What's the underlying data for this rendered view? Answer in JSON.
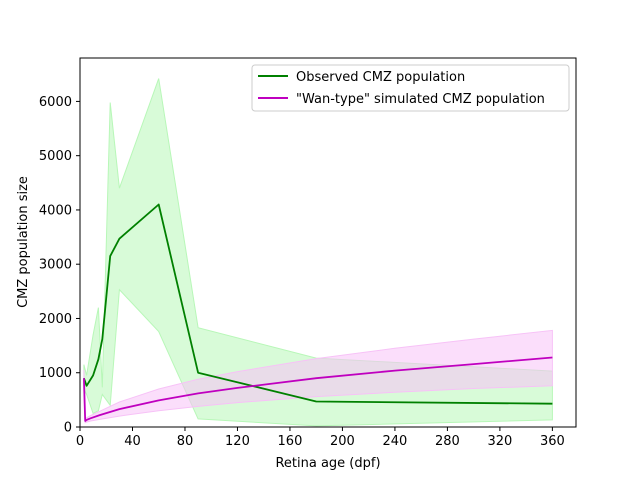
{
  "chart_data": {
    "type": "line",
    "title": "",
    "xlabel": "Retina age (dpf)",
    "ylabel": "CMZ population size",
    "xlim": [
      0,
      378
    ],
    "ylim": [
      0,
      6800
    ],
    "xticks": [
      0,
      40,
      80,
      120,
      160,
      200,
      240,
      280,
      320,
      360
    ],
    "yticks": [
      0,
      1000,
      2000,
      3000,
      4000,
      5000,
      6000
    ],
    "grid": false,
    "legend": "top-right",
    "series": [
      {
        "name": "Observed CMZ population",
        "color": "#008000",
        "band_color": "#b8f7b8",
        "x": [
          3,
          5,
          10,
          14,
          17,
          23,
          30,
          60,
          90,
          180,
          360
        ],
        "y": [
          900,
          760,
          950,
          1250,
          1620,
          3150,
          3470,
          4100,
          1000,
          470,
          430
        ],
        "lower": [
          700,
          600,
          250,
          300,
          600,
          400,
          2530,
          1760,
          150,
          20,
          130
        ],
        "upper": [
          1150,
          950,
          1700,
          2200,
          730,
          5980,
          4400,
          6420,
          1830,
          1270,
          1030
        ]
      },
      {
        "name": "\"Wan-type\" simulated CMZ population",
        "color": "#bf00bf",
        "band_color": "#f7c2f7",
        "x": [
          3,
          4,
          5,
          8,
          15,
          30,
          60,
          90,
          120,
          180,
          240,
          300,
          360
        ],
        "y": [
          900,
          110,
          130,
          160,
          220,
          330,
          490,
          620,
          720,
          900,
          1040,
          1160,
          1280
        ],
        "lower": [
          700,
          80,
          90,
          110,
          140,
          200,
          300,
          380,
          450,
          560,
          640,
          710,
          760
        ],
        "upper": [
          1050,
          140,
          170,
          210,
          290,
          460,
          700,
          880,
          1020,
          1260,
          1450,
          1620,
          1780
        ]
      }
    ]
  },
  "colors": {
    "observed": "#008000",
    "observed_band": "#b8f7b8",
    "simulated": "#bf00bf",
    "simulated_band": "#f7c2f7"
  }
}
